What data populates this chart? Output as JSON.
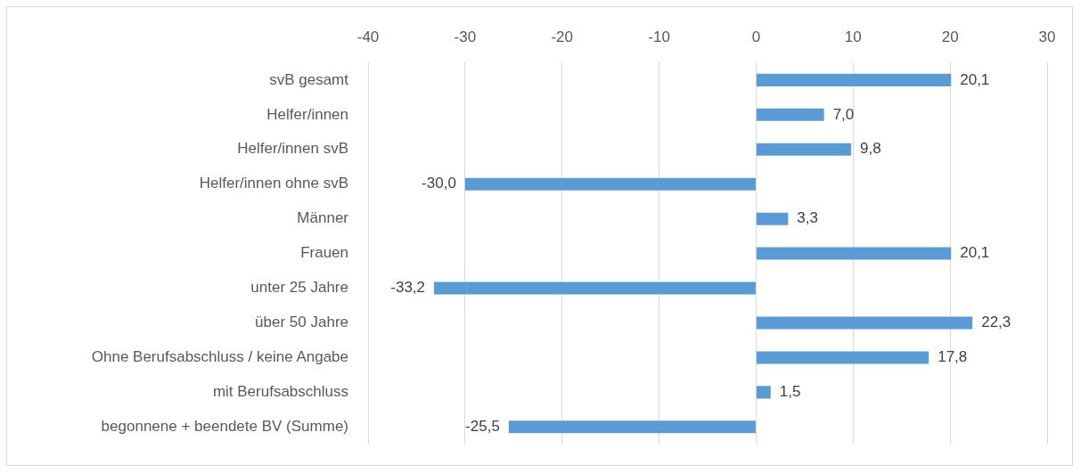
{
  "chart_data": {
    "type": "bar",
    "orientation": "horizontal",
    "categories": [
      "svB gesamt",
      "Helfer/innen",
      "Helfer/innen svB",
      "Helfer/innen ohne svB",
      "Männer",
      "Frauen",
      "unter 25 Jahre",
      "über 50 Jahre",
      "Ohne Berufsabschluss / keine Angabe",
      "mit Berufsabschluss",
      "begonnene + beendete BV (Summe)"
    ],
    "values": [
      20.1,
      7.0,
      9.8,
      -30.0,
      3.3,
      20.1,
      -33.2,
      22.3,
      17.8,
      1.5,
      -25.5
    ],
    "value_labels": [
      "20,1",
      "7,0",
      "9,8",
      "-30,0",
      "3,3",
      "20,1",
      "-33,2",
      "22,3",
      "17,8",
      "1,5",
      "-25,5"
    ],
    "color": "#5b9bd5",
    "xlim": [
      -40,
      30
    ],
    "xticks": [
      -40,
      -30,
      -20,
      -10,
      0,
      10,
      20,
      30
    ],
    "grid": "x"
  }
}
